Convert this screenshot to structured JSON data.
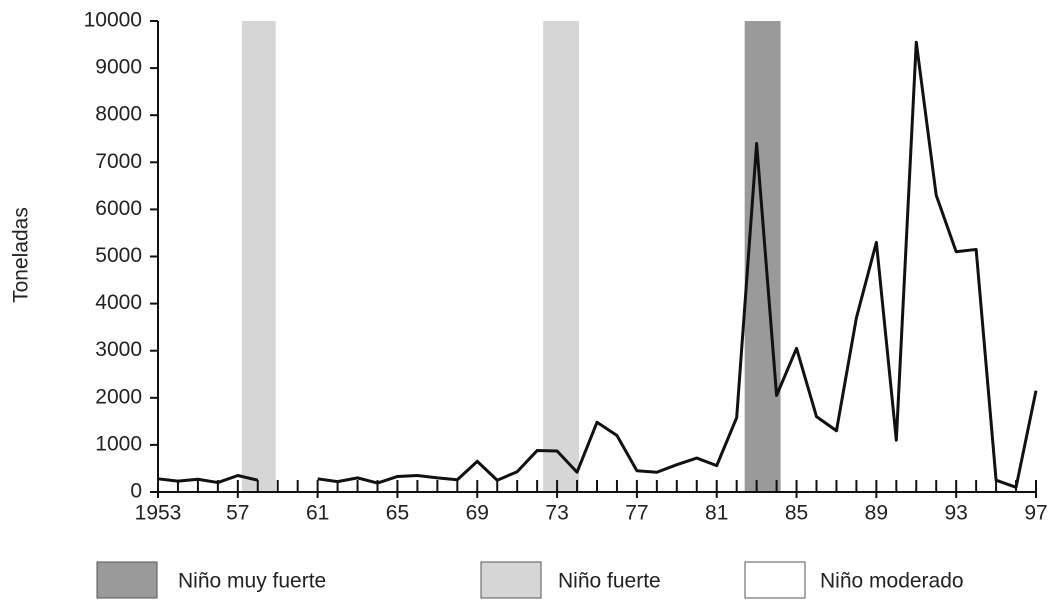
{
  "chart_data": {
    "type": "line",
    "y_label": "Toneladas",
    "x": [
      1953,
      1954,
      1955,
      1956,
      1957,
      1958,
      1959,
      1960,
      1961,
      1962,
      1963,
      1964,
      1965,
      1966,
      1967,
      1968,
      1969,
      1970,
      1971,
      1972,
      1973,
      1974,
      1975,
      1976,
      1977,
      1978,
      1979,
      1980,
      1981,
      1982,
      1983,
      1984,
      1985,
      1986,
      1987,
      1988,
      1989,
      1990,
      1991,
      1992,
      1993,
      1994,
      1995,
      1996,
      1997
    ],
    "series": [
      {
        "color": "#111111",
        "values": [
          280,
          230,
          270,
          200,
          350,
          250,
          null,
          null,
          280,
          220,
          300,
          190,
          330,
          350,
          300,
          260,
          650,
          250,
          430,
          880,
          870,
          420,
          1480,
          1200,
          450,
          420,
          580,
          720,
          560,
          1580,
          7400,
          2050,
          3050,
          1600,
          1300,
          3700,
          5300,
          1100,
          9550,
          6300,
          5100,
          5150,
          250,
          100,
          2150
        ]
      }
    ],
    "xlim": [
      1953,
      1997
    ],
    "xticks": [
      1953,
      {
        "value": 1957,
        "label": "57"
      },
      {
        "value": 1961,
        "label": "61"
      },
      {
        "value": 1965,
        "label": "65"
      },
      {
        "value": 1969,
        "label": "69"
      },
      {
        "value": 1973,
        "label": "73"
      },
      {
        "value": 1977,
        "label": "77"
      },
      {
        "value": 1981,
        "label": "81"
      },
      {
        "value": 1985,
        "label": "85"
      },
      {
        "value": 1989,
        "label": "89"
      },
      {
        "value": 1993,
        "label": "93"
      },
      {
        "value": 1997,
        "label": "97"
      }
    ],
    "ylim": [
      0,
      10000
    ],
    "yticks": [
      0,
      1000,
      2000,
      3000,
      4000,
      5000,
      6000,
      7000,
      8000,
      9000,
      10000
    ],
    "legend_items": [
      {
        "label": "Niño muy fuerte",
        "color": "#9a9a9a"
      },
      {
        "label": "Niño fuerte",
        "color": "#d6d6d6"
      },
      {
        "label": "Niño moderado",
        "color": "#ffffff"
      }
    ],
    "events": [
      {
        "start": 1957.2,
        "end": 1958.9,
        "kind": 1
      },
      {
        "start": 1972.3,
        "end": 1974.1,
        "kind": 1
      },
      {
        "start": 1982.4,
        "end": 1984.2,
        "kind": 0
      }
    ]
  }
}
